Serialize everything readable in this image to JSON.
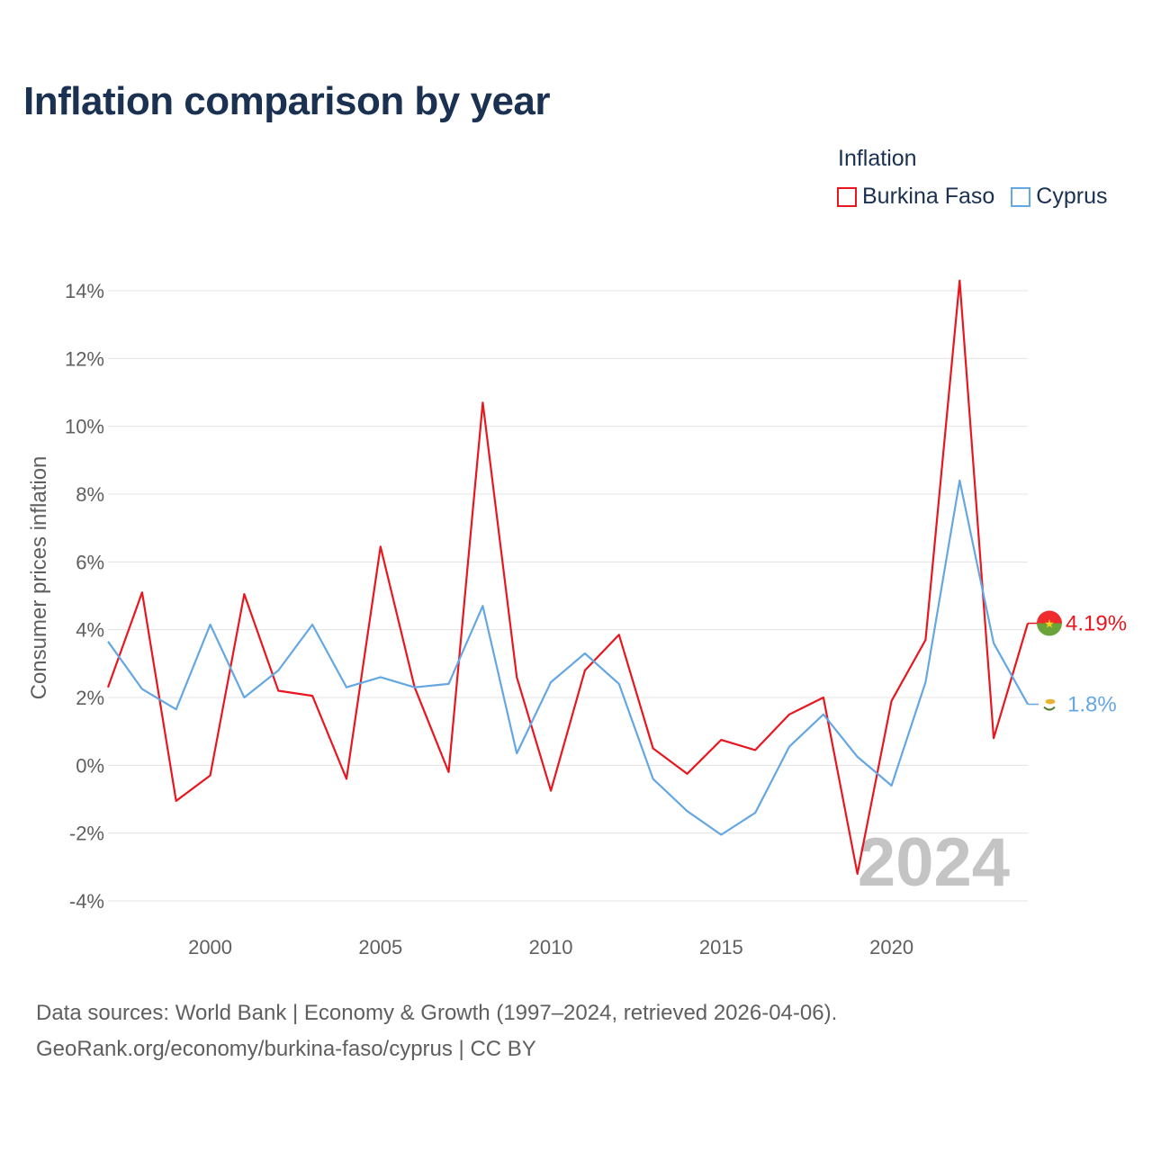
{
  "title": "Inflation comparison by year",
  "legend": {
    "title": "Inflation",
    "items": [
      {
        "name": "Burkina Faso",
        "color": "#e8161e"
      },
      {
        "name": "Cyprus",
        "color": "#64a7e3"
      }
    ]
  },
  "chart_data": {
    "type": "line",
    "ylabel": "Consumer prices inflation",
    "xlabel": "",
    "ylim": [
      -4,
      14
    ],
    "xlim": [
      1997,
      2024
    ],
    "y_ticks": [
      -4,
      -2,
      0,
      2,
      4,
      6,
      8,
      10,
      12,
      14
    ],
    "y_tick_labels": [
      "-4%",
      "-2%",
      "0%",
      "2%",
      "4%",
      "6%",
      "8%",
      "10%",
      "12%",
      "14%"
    ],
    "x_ticks": [
      2000,
      2005,
      2010,
      2015,
      2020
    ],
    "x_tick_labels": [
      "2000",
      "2005",
      "2010",
      "2015",
      "2020"
    ],
    "grid": true,
    "x": [
      1997,
      1998,
      1999,
      2000,
      2001,
      2002,
      2003,
      2004,
      2005,
      2006,
      2007,
      2008,
      2009,
      2010,
      2011,
      2012,
      2013,
      2014,
      2015,
      2016,
      2017,
      2018,
      2019,
      2020,
      2021,
      2022,
      2023,
      2024
    ],
    "series": [
      {
        "name": "Burkina Faso",
        "color": "#e8161e",
        "values": [
          2.3,
          5.1,
          -1.05,
          -0.3,
          5.05,
          2.2,
          2.05,
          -0.4,
          6.45,
          2.3,
          -0.2,
          10.7,
          2.6,
          -0.75,
          2.8,
          3.85,
          0.5,
          -0.25,
          0.75,
          0.45,
          1.5,
          2.0,
          -3.2,
          1.9,
          3.7,
          14.3,
          0.8,
          4.19
        ],
        "end_label": "4.19%"
      },
      {
        "name": "Cyprus",
        "color": "#64a7e3",
        "values": [
          3.65,
          2.25,
          1.65,
          4.15,
          2.0,
          2.8,
          4.15,
          2.3,
          2.6,
          2.3,
          2.4,
          4.7,
          0.35,
          2.45,
          3.3,
          2.4,
          -0.4,
          -1.35,
          -2.05,
          -1.4,
          0.55,
          1.5,
          0.25,
          -0.6,
          2.45,
          8.4,
          3.6,
          1.8
        ],
        "end_label": "1.8%"
      }
    ],
    "year_label": "2024"
  },
  "source": {
    "line1": "Data sources: World Bank | Economy & Growth (1997–2024, retrieved 2026-04-06).",
    "line2": "GeoRank.org/economy/burkina-faso/cyprus | CC BY"
  }
}
